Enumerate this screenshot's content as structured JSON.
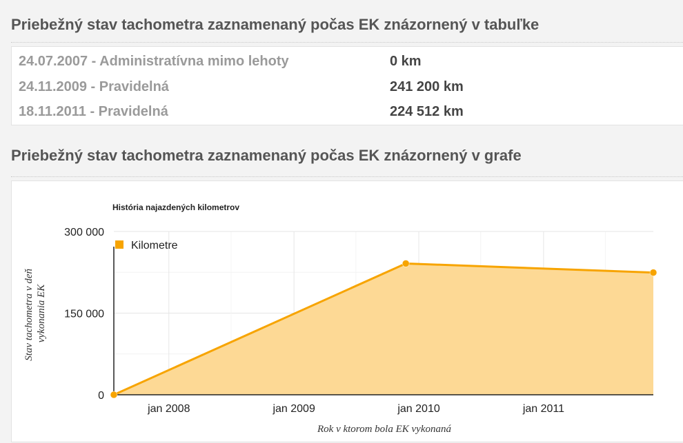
{
  "table_section": {
    "title": "Priebežný stav tachometra zaznamenaný počas EK znázornený v tabuľke",
    "rows": [
      {
        "date": "24.07.2007 - Administratívna mimo lehoty",
        "km": "0 km"
      },
      {
        "date": "24.11.2009 - Pravidelná",
        "km": "241 200 km"
      },
      {
        "date": "18.11.2011 - Pravidelná",
        "km": "224 512 km"
      }
    ]
  },
  "chart_section": {
    "title": "Priebežný stav tachometra zaznamenaný počas EK znázornený v grafe"
  },
  "chart_data": {
    "type": "area",
    "title": "História najazdených kilometrov",
    "xlabel": "Rok v ktorom bola EK vykonaná",
    "ylabel": "Stav tachometra v deň vykonania EK",
    "legend": {
      "label": "Kilometre",
      "placement": "top-left"
    },
    "series": [
      {
        "name": "Kilometre",
        "color": "#f7a400",
        "fill": "#fdd995",
        "points": [
          {
            "x": "2007-07-24",
            "y": 0
          },
          {
            "x": "2009-11-24",
            "y": 241200
          },
          {
            "x": "2011-11-18",
            "y": 224512
          }
        ]
      }
    ],
    "x_ticks": [
      {
        "date": "2008-01-01",
        "label": "jan 2008"
      },
      {
        "date": "2009-01-01",
        "label": "jan 2009"
      },
      {
        "date": "2010-01-01",
        "label": "jan 2010"
      },
      {
        "date": "2011-01-01",
        "label": "jan 2011"
      }
    ],
    "y_ticks": [
      {
        "value": 0,
        "label": "0"
      },
      {
        "value": 150000,
        "label": "150 000"
      },
      {
        "value": 300000,
        "label": "300 000"
      }
    ],
    "ylim": [
      0,
      300000
    ],
    "grid": true
  }
}
